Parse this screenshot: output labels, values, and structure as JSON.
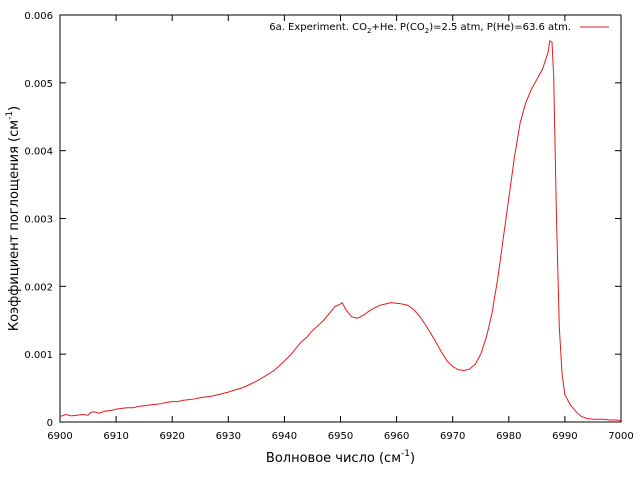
{
  "chart_data": {
    "type": "line",
    "xlabel_base": "Волновое число (см",
    "xlabel_sup": "-1",
    "xlabel_end": ")",
    "ylabel_base": "Коэффициент поглощения (см",
    "ylabel_sup": "-1",
    "ylabel_end": ")",
    "xlim": [
      6900,
      7000
    ],
    "ylim": [
      0,
      0.006
    ],
    "xticks": [
      "6900",
      "6910",
      "6920",
      "6930",
      "6940",
      "6950",
      "6960",
      "6970",
      "6980",
      "6990",
      "7000"
    ],
    "yticks": [
      "0",
      "0.001",
      "0.002",
      "0.003",
      "0.004",
      "0.005",
      "0.006"
    ],
    "legend_position": "top-right",
    "series": [
      {
        "name_parts": [
          "6a. Experiment. CO",
          "2",
          "+He.  P(CO",
          "2",
          ")=2.5 atm, P(He)=63.6 atm."
        ],
        "color": "#e41a1c",
        "x": [
          6900,
          6901,
          6902,
          6903,
          6904,
          6905,
          6905.5,
          6906,
          6907,
          6908,
          6909,
          6910,
          6911,
          6912,
          6913,
          6914,
          6915,
          6916,
          6917,
          6918,
          6919,
          6920,
          6921,
          6922,
          6923,
          6924,
          6925,
          6926,
          6927,
          6928,
          6929,
          6930,
          6931,
          6932,
          6933,
          6934,
          6935,
          6936,
          6937,
          6938,
          6939,
          6940,
          6941,
          6942,
          6943,
          6944,
          6944.5,
          6945,
          6946,
          6947,
          6948,
          6949,
          6950,
          6950.3,
          6951,
          6952,
          6953,
          6954,
          6955,
          6956,
          6957,
          6958,
          6959,
          6960,
          6961,
          6962,
          6963,
          6964,
          6965,
          6966,
          6967,
          6968,
          6969,
          6970,
          6971,
          6972,
          6973,
          6974,
          6975,
          6976,
          6977,
          6978,
          6979,
          6980,
          6981,
          6982,
          6983,
          6984,
          6985,
          6986,
          6987,
          6987.3,
          6987.7,
          6988,
          6988.5,
          6989,
          6989.5,
          6990,
          6991,
          6992,
          6993,
          6994,
          6995,
          6996,
          6997,
          6998,
          6999,
          7000
        ],
        "y": [
          8e-05,
          0.00011,
          9e-05,
          0.0001,
          0.00011,
          0.0001,
          0.00014,
          0.00015,
          0.00013,
          0.00016,
          0.00017,
          0.00019,
          0.0002,
          0.00021,
          0.00021,
          0.00023,
          0.00024,
          0.00025,
          0.00026,
          0.00027,
          0.00029,
          0.0003,
          0.0003,
          0.00032,
          0.00033,
          0.00034,
          0.00036,
          0.00037,
          0.00038,
          0.0004,
          0.00042,
          0.00044,
          0.00047,
          0.00049,
          0.00052,
          0.00056,
          0.0006,
          0.00065,
          0.0007,
          0.00075,
          0.00082,
          0.0009,
          0.00098,
          0.00108,
          0.00118,
          0.00125,
          0.0013,
          0.00135,
          0.00142,
          0.0015,
          0.0016,
          0.0017,
          0.00174,
          0.00176,
          0.00165,
          0.00155,
          0.00153,
          0.00157,
          0.00163,
          0.00168,
          0.00172,
          0.00174,
          0.00176,
          0.00175,
          0.00174,
          0.00172,
          0.00166,
          0.00157,
          0.00145,
          0.00132,
          0.00118,
          0.00103,
          0.0009,
          0.00082,
          0.00077,
          0.00076,
          0.00078,
          0.00085,
          0.001,
          0.00125,
          0.0016,
          0.0021,
          0.0027,
          0.0033,
          0.0039,
          0.0044,
          0.0047,
          0.0049,
          0.00505,
          0.0052,
          0.00545,
          0.00562,
          0.0056,
          0.0051,
          0.003,
          0.0014,
          0.0007,
          0.0004,
          0.00025,
          0.00015,
          8e-05,
          5e-05,
          4e-05,
          4e-05,
          4e-05,
          3e-05,
          3e-05,
          2e-05
        ]
      }
    ]
  }
}
